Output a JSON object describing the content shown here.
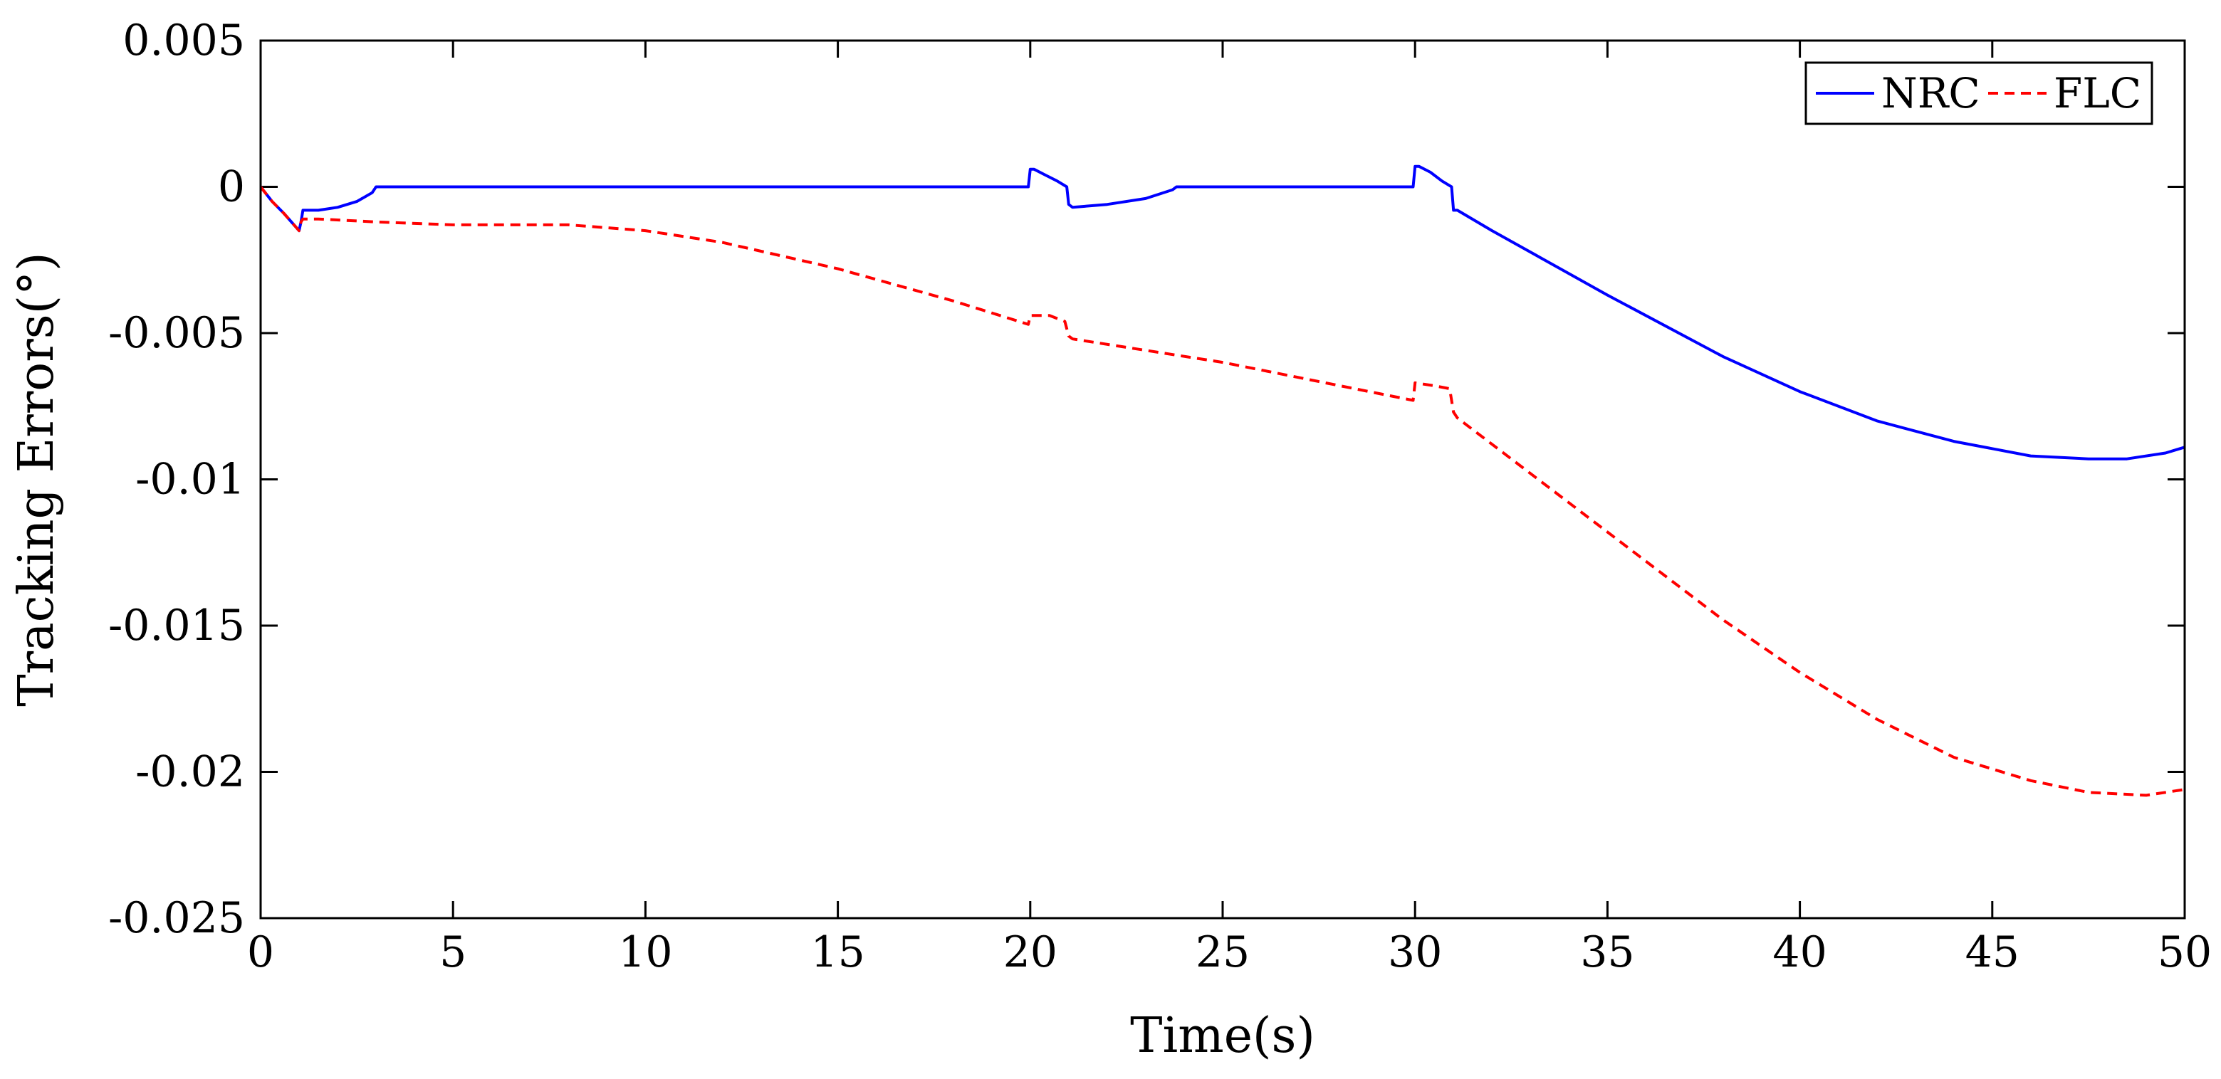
{
  "chart_data": {
    "type": "line",
    "title": "",
    "xlabel": "Time(s)",
    "ylabel": "Tracking Errors(°)",
    "xlim": [
      0,
      50
    ],
    "ylim": [
      -0.025,
      0.005
    ],
    "xticks": [
      0,
      5,
      10,
      15,
      20,
      25,
      30,
      35,
      40,
      45,
      50
    ],
    "xtick_labels": [
      "0",
      "5",
      "10",
      "15",
      "20",
      "25",
      "30",
      "35",
      "40",
      "45",
      "50"
    ],
    "yticks": [
      0.005,
      0,
      -0.005,
      -0.01,
      -0.015,
      -0.02,
      -0.025
    ],
    "ytick_labels": [
      "0.005",
      "0",
      "-0.005",
      "-0.01",
      "-0.015",
      "-0.02",
      "-0.025"
    ],
    "grid": false,
    "legend": {
      "position": "top-right",
      "orientation": "horizontal"
    },
    "series": [
      {
        "name": "NRC",
        "color": "#0000ff",
        "style": "solid",
        "x": [
          0,
          0.3,
          0.6,
          1.0,
          1.05,
          1.1,
          1.5,
          2.0,
          2.5,
          2.9,
          3.0,
          5,
          10,
          15,
          19.95,
          20.0,
          20.1,
          20.4,
          20.7,
          20.95,
          21.0,
          21.1,
          22.0,
          23.0,
          23.7,
          23.8,
          25,
          29.95,
          30.0,
          30.1,
          30.4,
          30.7,
          30.95,
          31.0,
          31.1,
          32,
          35,
          38,
          40,
          42,
          44,
          46,
          47.5,
          48.5,
          49.5,
          50
        ],
        "y": [
          0,
          -0.0005,
          -0.0009,
          -0.0015,
          -0.0012,
          -0.0008,
          -0.0008,
          -0.0007,
          -0.0005,
          -0.0002,
          0,
          0,
          0,
          0,
          0,
          0.0006,
          0.0006,
          0.0004,
          0.0002,
          0,
          -0.0006,
          -0.0007,
          -0.0006,
          -0.0004,
          -0.0001,
          0,
          0,
          0,
          0.0007,
          0.0007,
          0.0005,
          0.0002,
          0,
          -0.0008,
          -0.0008,
          -0.0015,
          -0.0037,
          -0.0058,
          -0.007,
          -0.008,
          -0.0087,
          -0.0092,
          -0.0093,
          -0.0093,
          -0.0091,
          -0.0089
        ]
      },
      {
        "name": "FLC",
        "color": "#ff0000",
        "style": "dashed",
        "x": [
          0,
          0.3,
          0.6,
          1.0,
          1.05,
          1.1,
          1.5,
          3,
          5,
          8,
          10,
          12,
          15,
          18,
          19.95,
          20.0,
          20.5,
          20.9,
          21.0,
          21.1,
          25,
          29.95,
          30.0,
          30.5,
          30.9,
          31.0,
          31.1,
          32,
          35,
          38,
          40,
          42,
          44,
          46,
          47.5,
          49,
          50
        ],
        "y": [
          0,
          -0.0005,
          -0.0009,
          -0.0015,
          -0.0012,
          -0.0011,
          -0.0011,
          -0.0012,
          -0.0013,
          -0.0013,
          -0.0015,
          -0.0019,
          -0.0028,
          -0.0039,
          -0.0047,
          -0.0044,
          -0.0044,
          -0.0046,
          -0.0051,
          -0.0052,
          -0.006,
          -0.0073,
          -0.0067,
          -0.0068,
          -0.0069,
          -0.0077,
          -0.0079,
          -0.0088,
          -0.0118,
          -0.0148,
          -0.0166,
          -0.0182,
          -0.0195,
          -0.0203,
          -0.0207,
          -0.0208,
          -0.0206
        ]
      }
    ]
  }
}
